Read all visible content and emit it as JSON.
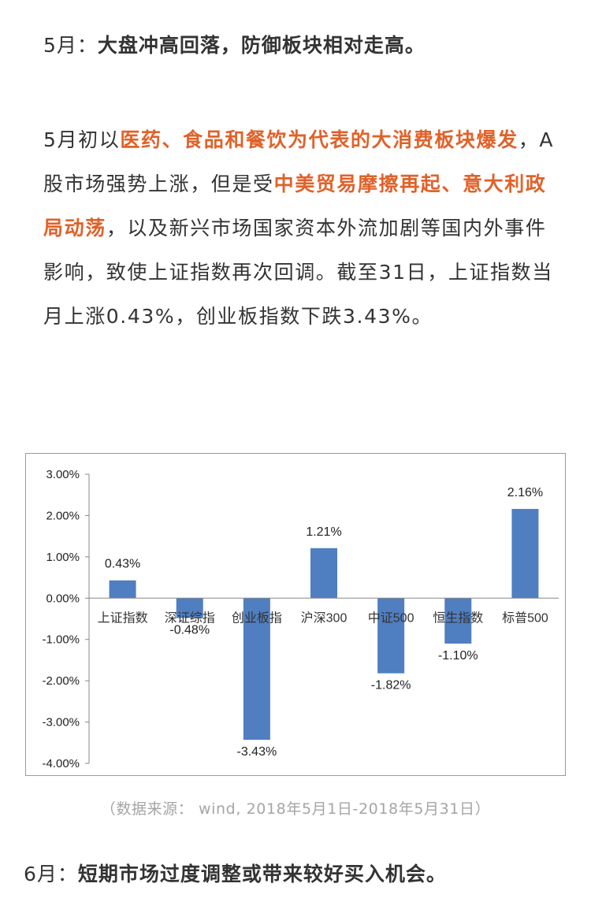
{
  "may": {
    "lead": "5月：",
    "heading": "大盘冲高回落，防御板块相对走高。"
  },
  "paragraph": {
    "p1": "5月初以",
    "h1": "医药、食品和餐饮为代表的大消费板块爆发",
    "p2": "，A股市场强势上涨，但是受",
    "h2": "中美贸易摩擦再起、意大利政局动荡",
    "p3": "，以及新兴市场国家资本外流加剧等国内外事件影响，致使上证指数再次回调。截至31日，上证指数当月上涨0.43%，创业板指数下跌3.43%。"
  },
  "chart_data": {
    "type": "bar",
    "categories": [
      "上证指数",
      "深证综指",
      "创业板指",
      "沪深300",
      "中证500",
      "恒生指数",
      "标普500"
    ],
    "values": [
      0.43,
      -0.48,
      -3.43,
      1.21,
      -1.82,
      -1.1,
      2.16
    ],
    "value_labels": [
      "0.43%",
      "-0.48%",
      "-3.43%",
      "1.21%",
      "-1.82%",
      "-1.10%",
      "2.16%"
    ],
    "y_ticks": [
      3,
      2,
      1,
      0,
      -1,
      -2,
      -3,
      -4
    ],
    "y_tick_labels": [
      "3.00%",
      "2.00%",
      "1.00%",
      "0.00%",
      "-1.00%",
      "-2.00%",
      "-3.00%",
      "-4.00%"
    ],
    "ylim": [
      -4,
      3
    ],
    "grid": false,
    "title": "",
    "xlabel": "",
    "ylabel": "",
    "bar_color": "#4f7ec1"
  },
  "source": "（数据来源： wind, 2018年5月1日-2018年5月31日）",
  "june": {
    "lead": "6月：",
    "heading": "短期市场过度调整或带来较好买入机会。"
  }
}
